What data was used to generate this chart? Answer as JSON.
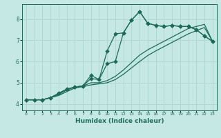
{
  "title": "",
  "xlabel": "Humidex (Indice chaleur)",
  "xlim": [
    -0.5,
    23.5
  ],
  "ylim": [
    3.7,
    8.7
  ],
  "xticks": [
    0,
    1,
    2,
    3,
    4,
    5,
    6,
    7,
    8,
    9,
    10,
    11,
    12,
    13,
    14,
    15,
    16,
    17,
    18,
    19,
    20,
    21,
    22,
    23
  ],
  "yticks": [
    4,
    5,
    6,
    7,
    8
  ],
  "bg_color": "#c5e8e5",
  "grid_color": "#aed4d0",
  "line_color": "#1a6b5a",
  "series_with_markers": [
    [
      4.2,
      4.2,
      4.2,
      4.3,
      4.5,
      4.7,
      4.8,
      4.85,
      5.2,
      5.15,
      6.5,
      7.3,
      7.35,
      7.95,
      8.35,
      7.8,
      7.7,
      7.65,
      7.7,
      7.65,
      7.65,
      7.5,
      7.2,
      6.95
    ],
    [
      4.2,
      4.2,
      4.2,
      4.3,
      4.5,
      4.7,
      4.8,
      4.85,
      5.35,
      5.15,
      5.9,
      6.0,
      7.35,
      7.95,
      8.35,
      7.8,
      7.7,
      7.65,
      7.7,
      7.65,
      7.65,
      7.5,
      7.2,
      6.95
    ]
  ],
  "series_plain": [
    [
      4.2,
      4.2,
      4.2,
      4.3,
      4.45,
      4.65,
      4.8,
      4.85,
      5.0,
      5.0,
      5.1,
      5.3,
      5.6,
      5.95,
      6.3,
      6.55,
      6.75,
      6.95,
      7.15,
      7.35,
      7.55,
      7.65,
      7.75,
      6.95
    ],
    [
      4.2,
      4.2,
      4.2,
      4.3,
      4.4,
      4.58,
      4.75,
      4.82,
      4.9,
      4.95,
      5.0,
      5.15,
      5.4,
      5.7,
      6.0,
      6.28,
      6.5,
      6.7,
      6.9,
      7.1,
      7.3,
      7.45,
      7.6,
      6.95
    ]
  ],
  "marker": "D",
  "marker_size": 2.8,
  "line_width": 0.9
}
